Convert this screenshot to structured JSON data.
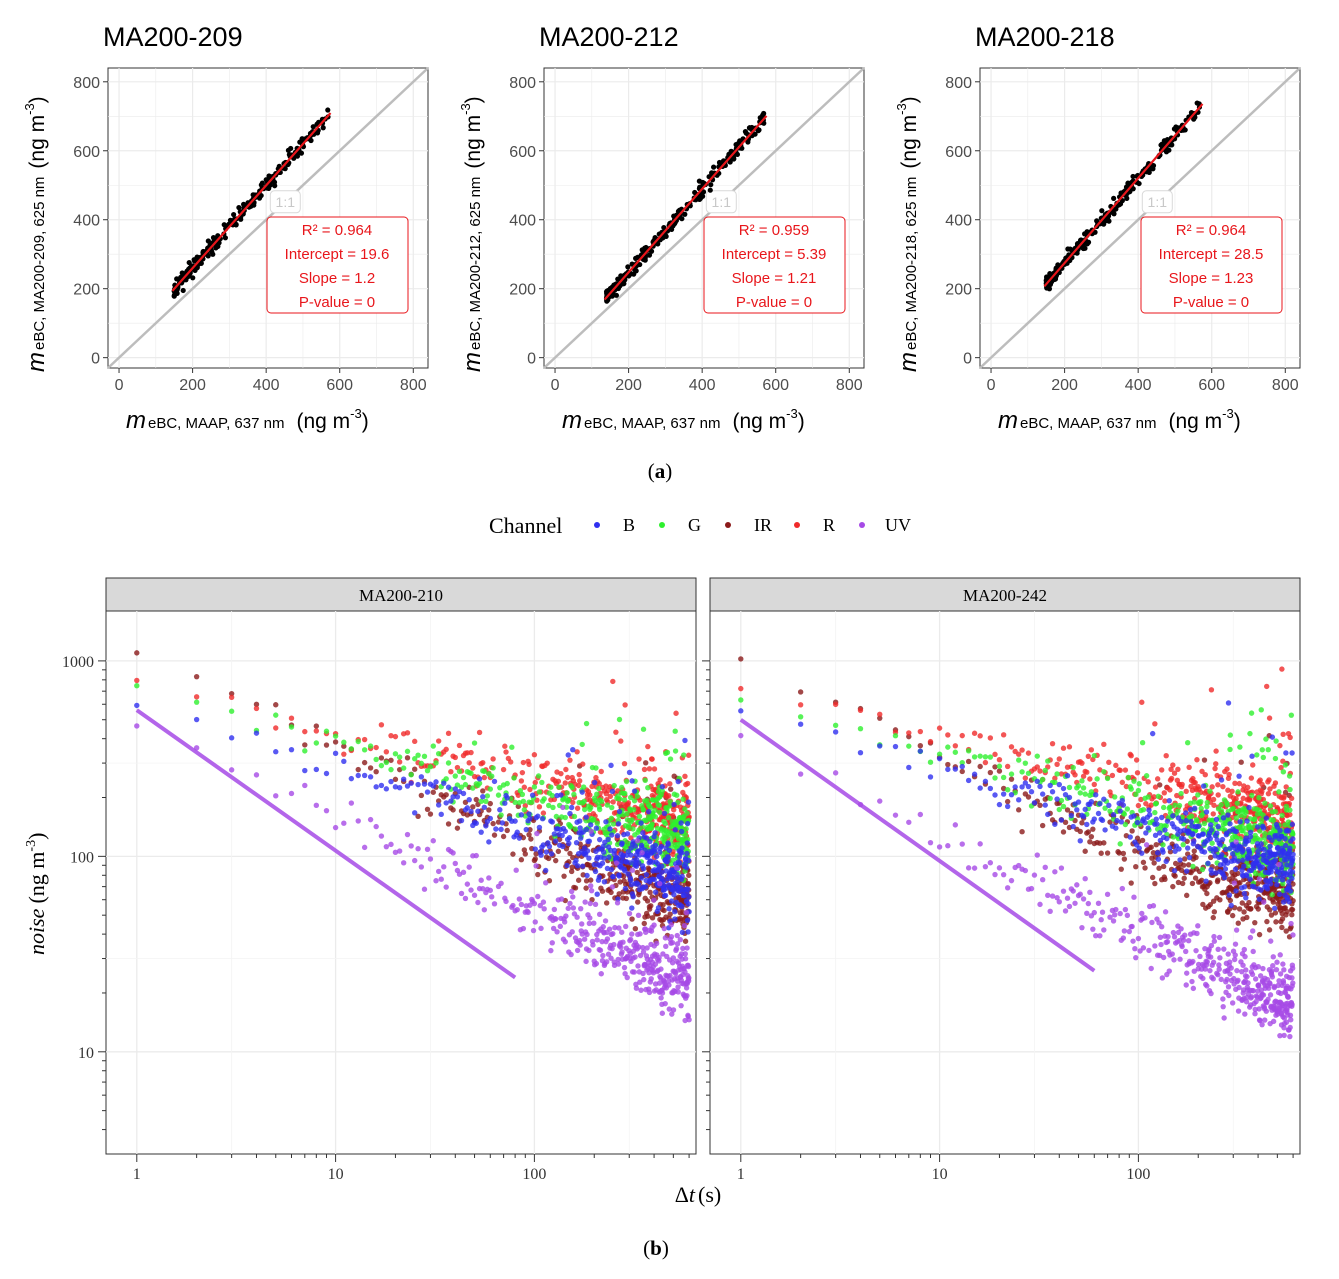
{
  "figure": {
    "caption_a": "(a)",
    "caption_a_letter": "a",
    "caption_b": "(b)",
    "caption_b_letter": "b"
  },
  "colors": {
    "points_a": "#000000",
    "fit_a": "#e8161b",
    "identity": "#bdbdbd",
    "B": "#2f2ff0",
    "G": "#2ef02e",
    "IR": "#8b1a1a",
    "R": "#f02a2a",
    "UV": "#a64ae6"
  },
  "chart_data": [
    {
      "type": "scatter",
      "panel": "a",
      "title": "MA200-209",
      "xlabel_main": "m",
      "xlabel_sub": "eBC, MAAP, 637 nm",
      "xlabel_unit": "(ng m",
      "xlabel_unit_exp": "-3",
      "xlabel_unit_close": ")",
      "ylabel_main": "m",
      "ylabel_sub": "eBC, MA200-209, 625 nm",
      "ylabel_unit": "(ng m",
      "ylabel_unit_exp": "-3",
      "ylabel_unit_close": ")",
      "xlim": [
        -30,
        840
      ],
      "ylim": [
        -30,
        840
      ],
      "xticks": [
        0,
        200,
        400,
        600,
        800
      ],
      "yticks": [
        0,
        200,
        400,
        600,
        800
      ],
      "x_range": [
        150,
        570
      ],
      "fit": {
        "intercept": 19.6,
        "slope": 1.2
      },
      "identity_label": "1:1",
      "stats": [
        "R² = 0.964",
        "Intercept = 19.6",
        "Slope = 1.2",
        "P-value = 0"
      ]
    },
    {
      "type": "scatter",
      "panel": "a",
      "title": "MA200-212",
      "xlabel_main": "m",
      "xlabel_sub": "eBC, MAAP, 637 nm",
      "xlabel_unit": "(ng m",
      "xlabel_unit_exp": "-3",
      "xlabel_unit_close": ")",
      "ylabel_main": "m",
      "ylabel_sub": "eBC, MA200-212, 625 nm",
      "ylabel_unit": "(ng m",
      "ylabel_unit_exp": "-3",
      "ylabel_unit_close": ")",
      "xlim": [
        -30,
        840
      ],
      "ylim": [
        -30,
        840
      ],
      "xticks": [
        0,
        200,
        400,
        600,
        800
      ],
      "yticks": [
        0,
        200,
        400,
        600,
        800
      ],
      "x_range": [
        140,
        570
      ],
      "fit": {
        "intercept": 5.39,
        "slope": 1.21
      },
      "identity_label": "1:1",
      "stats": [
        "R² = 0.959",
        "Intercept = 5.39",
        "Slope = 1.21",
        "P-value = 0"
      ]
    },
    {
      "type": "scatter",
      "panel": "a",
      "title": "MA200-218",
      "xlabel_main": "m",
      "xlabel_sub": "eBC, MAAP, 637 nm",
      "xlabel_unit": "(ng m",
      "xlabel_unit_exp": "-3",
      "xlabel_unit_close": ")",
      "ylabel_main": "m",
      "ylabel_sub": "eBC, MA200-218, 625 nm",
      "ylabel_unit": "(ng m",
      "ylabel_unit_exp": "-3",
      "ylabel_unit_close": ")",
      "xlim": [
        -30,
        840
      ],
      "ylim": [
        -30,
        840
      ],
      "xticks": [
        0,
        200,
        400,
        600,
        800
      ],
      "yticks": [
        0,
        200,
        400,
        600,
        800
      ],
      "x_range": [
        150,
        570
      ],
      "fit": {
        "intercept": 28.5,
        "slope": 1.23
      },
      "identity_label": "1:1",
      "stats": [
        "R² = 0.964",
        "Intercept = 28.5",
        "Slope = 1.23",
        "P-value = 0"
      ]
    },
    {
      "type": "scatter",
      "panel": "b",
      "title": "MA200-210",
      "scale": "log-log",
      "xlim": [
        0.7,
        650
      ],
      "ylim": [
        3,
        1800
      ],
      "xticks": [
        1,
        10,
        100
      ],
      "xtick_labels": [
        "1",
        "10",
        "100"
      ],
      "yticks": [
        10,
        100,
        1000
      ],
      "ytick_labels": [
        "10",
        "100",
        "1000"
      ],
      "series": [
        {
          "name": "B",
          "start": 620,
          "slope": -0.33,
          "floor": 7.5
        },
        {
          "name": "G",
          "start": 760,
          "slope": -0.29,
          "floor": 10
        },
        {
          "name": "IR",
          "start": 1150,
          "slope": -0.5,
          "floor": 40
        },
        {
          "name": "R",
          "start": 820,
          "slope": -0.27,
          "floor": 12
        },
        {
          "name": "UV",
          "start": 480,
          "slope": -0.48,
          "floor": 5.5
        }
      ],
      "fit_line": {
        "series": "UV",
        "y_at_1": 560,
        "end_x": 80,
        "end_y": 24
      }
    },
    {
      "type": "scatter",
      "panel": "b",
      "title": "MA200-242",
      "scale": "log-log",
      "xlim": [
        0.7,
        650
      ],
      "ylim": [
        3,
        1800
      ],
      "xticks": [
        1,
        10,
        100
      ],
      "xtick_labels": [
        "1",
        "10",
        "100"
      ],
      "yticks": [
        10,
        100,
        1000
      ],
      "ytick_labels": [
        "10",
        "100",
        "1000"
      ],
      "series": [
        {
          "name": "B",
          "start": 570,
          "slope": -0.3,
          "floor": 18
        },
        {
          "name": "G",
          "start": 630,
          "slope": -0.28,
          "floor": 20
        },
        {
          "name": "IR",
          "start": 1050,
          "slope": -0.52,
          "floor": 55
        },
        {
          "name": "R",
          "start": 730,
          "slope": -0.25,
          "floor": 23
        },
        {
          "name": "UV",
          "start": 420,
          "slope": -0.5,
          "floor": 6
        }
      ],
      "fit_line": {
        "series": "UV",
        "y_at_1": 500,
        "end_x": 60,
        "end_y": 26
      }
    }
  ],
  "legend_b": {
    "title": "Channel",
    "entries": [
      "B",
      "G",
      "IR",
      "R",
      "UV"
    ]
  },
  "axes_b": {
    "xlabel_delta": "Δ",
    "xlabel_var": "t",
    "xlabel_unit": "(s)",
    "ylabel_var": "noise",
    "ylabel_unit": "(ng m",
    "ylabel_unit_exp": "-3",
    "ylabel_unit_close": ")"
  }
}
